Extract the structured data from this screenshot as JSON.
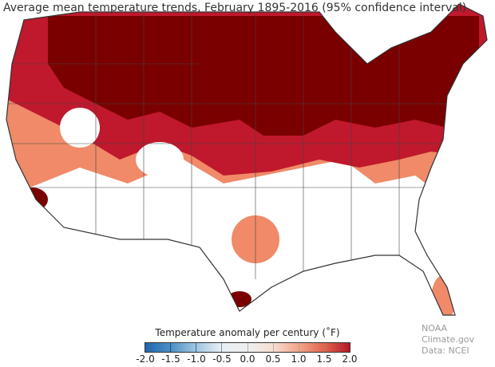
{
  "title": "Average mean temperature trends, February 1895-2016 (95% confidence interval)",
  "legend": {
    "label": "Temperature anomaly per century (˚F)",
    "ticks": [
      "-2.0",
      "-1.5",
      "-1.0",
      "-0.5",
      "0.0",
      "0.5",
      "1.0",
      "1.5",
      "2.0"
    ],
    "colors": [
      "#2166ac",
      "#4c8fc6",
      "#9fc6e2",
      "#e8eff5",
      "#efefef",
      "#f6ddd0",
      "#f2a488",
      "#e0644d",
      "#b2182b"
    ]
  },
  "map_colors": {
    "strong": "#7a0000",
    "high": "#c0182c",
    "medium": "#f08a68",
    "none": "#ffffff"
  },
  "credit": {
    "line1": "NOAA Climate.gov",
    "line2": "Data: NCEI"
  }
}
